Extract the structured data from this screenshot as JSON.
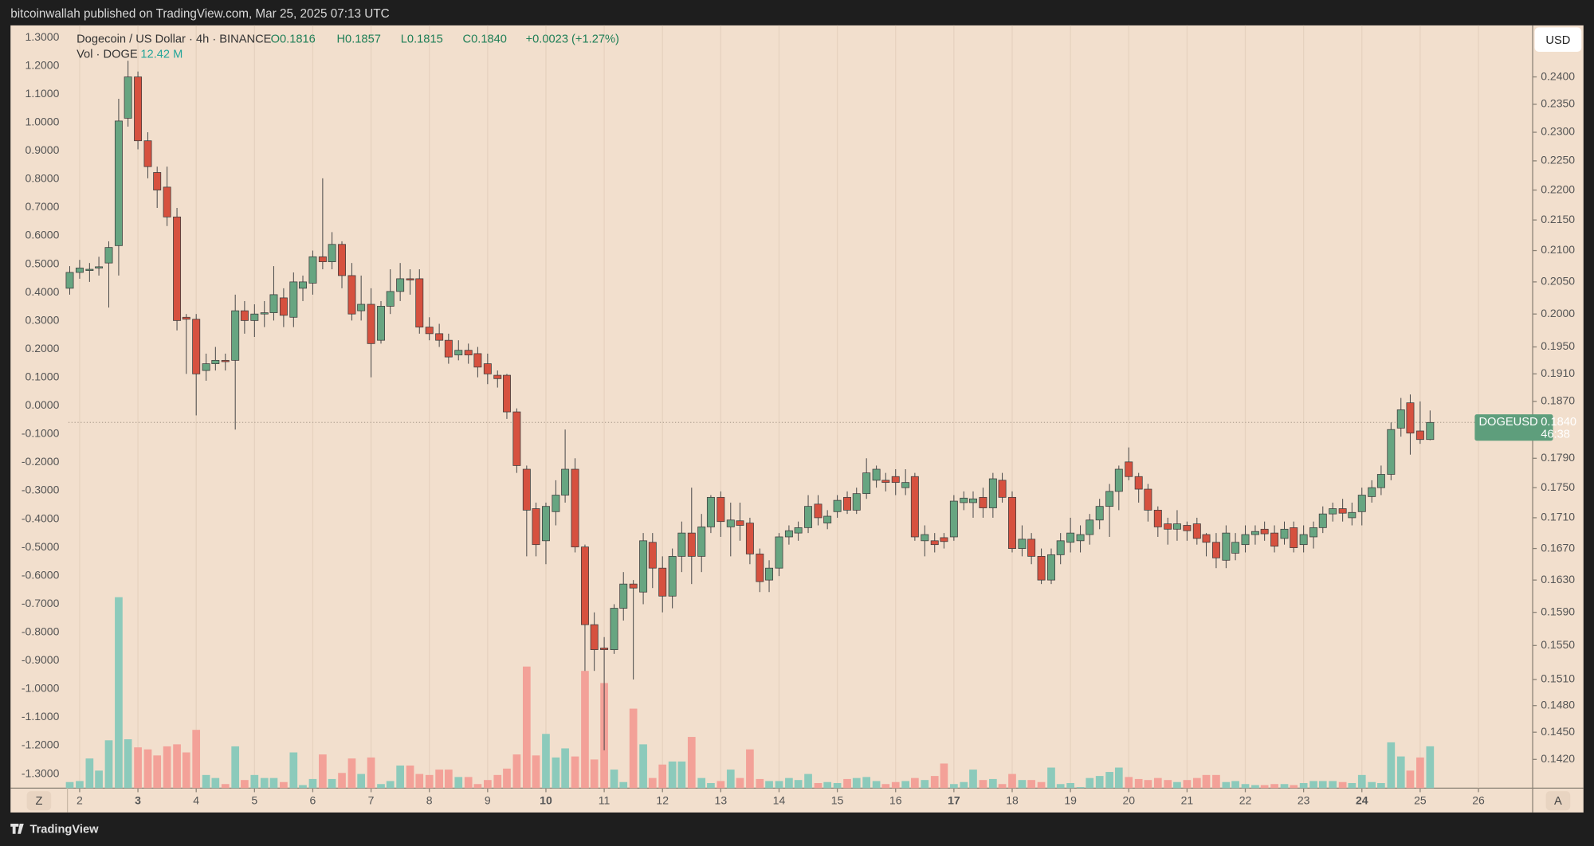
{
  "header": {
    "publish": "bitcoinwallah published on TradingView.com, Mar 25, 2025 07:13 UTC"
  },
  "footer": {
    "brand": "TradingView"
  },
  "buttons": {
    "currency": "USD",
    "zoom": "Z",
    "auto": "A"
  },
  "chart_data": {
    "type": "candlestick",
    "title": "Dogecoin / US Dollar · 4h · BINANCE",
    "ohlc_text": [
      "O0.1816",
      "H0.1857",
      "L0.1815",
      "C0.1840",
      "+0.0023 (+1.27%)"
    ],
    "volume_title": "Vol · DOGE",
    "volume_value": "12.42 M",
    "up_color": "#67a581",
    "down_color": "#d6513f",
    "volume_up_color": "#8ccabb",
    "volume_down_color": "#f3a198",
    "wick_color": "#4a4a4a",
    "grid": true,
    "price_label": {
      "symbol": "DOGEUSD",
      "value": 0.184,
      "label": "0.1840",
      "countdown": "46:38",
      "color": "#5e9e7c"
    },
    "xlim": [
      1.808,
      26.93
    ],
    "xticks": [
      2,
      3,
      4,
      5,
      6,
      7,
      8,
      9,
      10,
      11,
      12,
      13,
      14,
      15,
      16,
      17,
      18,
      19,
      20,
      21,
      22,
      23,
      24,
      25,
      26
    ],
    "major_xticks": [
      3,
      10,
      17,
      24
    ],
    "ylim": [
      -1.35,
      1.343
    ],
    "yticks": [
      {
        "value": 1.3,
        "label": "1.3000"
      },
      {
        "value": 1.2,
        "label": "1.2000"
      },
      {
        "value": 1.1,
        "label": "1.1000"
      },
      {
        "value": 1.0,
        "label": "1.0000"
      },
      {
        "value": 0.9,
        "label": "0.9000"
      },
      {
        "value": 0.8,
        "label": "0.8000"
      },
      {
        "value": 0.7,
        "label": "0.7000"
      },
      {
        "value": 0.6,
        "label": "0.6000"
      },
      {
        "value": 0.5,
        "label": "0.5000"
      },
      {
        "value": 0.4,
        "label": "0.4000"
      },
      {
        "value": 0.3,
        "label": "0.3000"
      },
      {
        "value": 0.2,
        "label": "0.2000"
      },
      {
        "value": 0.1,
        "label": "0.1000"
      },
      {
        "value": 0,
        "label": "0.0000"
      },
      {
        "value": -0.1,
        "label": "-0.1000"
      },
      {
        "value": -0.2,
        "label": "-0.2000"
      },
      {
        "value": -0.3,
        "label": "-0.3000"
      },
      {
        "value": -0.4,
        "label": "-0.4000"
      },
      {
        "value": -0.5,
        "label": "-0.5000"
      },
      {
        "value": -0.6,
        "label": "-0.6000"
      },
      {
        "value": -0.7,
        "label": "-0.7000"
      },
      {
        "value": -0.8,
        "label": "-0.8000"
      },
      {
        "value": -0.9,
        "label": "-0.9000"
      },
      {
        "value": -1.0,
        "label": "-1.0000"
      },
      {
        "value": -1.1,
        "label": "-1.1000"
      },
      {
        "value": -1.2,
        "label": "-1.2000"
      },
      {
        "value": -1.3,
        "label": "-1.3000"
      }
    ],
    "y2lim": [
      0.1389,
      0.2497
    ],
    "y2log": true,
    "y2ticks": [
      {
        "value": 0.24,
        "label": "0.2400"
      },
      {
        "value": 0.235,
        "label": "0.2350"
      },
      {
        "value": 0.23,
        "label": "0.2300"
      },
      {
        "value": 0.225,
        "label": "0.2250"
      },
      {
        "value": 0.22,
        "label": "0.2200"
      },
      {
        "value": 0.215,
        "label": "0.2150"
      },
      {
        "value": 0.21,
        "label": "0.2100"
      },
      {
        "value": 0.205,
        "label": "0.2050"
      },
      {
        "value": 0.2,
        "label": "0.2000"
      },
      {
        "value": 0.195,
        "label": "0.1950"
      },
      {
        "value": 0.191,
        "label": "0.1910"
      },
      {
        "value": 0.187,
        "label": "0.1870"
      },
      {
        "value": 0.179,
        "label": "0.1790"
      },
      {
        "value": 0.175,
        "label": "0.1750"
      },
      {
        "value": 0.171,
        "label": "0.1710"
      },
      {
        "value": 0.167,
        "label": "0.1670"
      },
      {
        "value": 0.163,
        "label": "0.1630"
      },
      {
        "value": 0.159,
        "label": "0.1590"
      },
      {
        "value": 0.155,
        "label": "0.1550"
      },
      {
        "value": 0.151,
        "label": "0.1510"
      },
      {
        "value": 0.148,
        "label": "0.1480"
      },
      {
        "value": 0.145,
        "label": "0.1450"
      },
      {
        "value": 0.142,
        "label": "0.1420"
      }
    ],
    "x": [
      1.83,
      2,
      2.17,
      2.33,
      2.5,
      2.67,
      2.83,
      3,
      3.17,
      3.33,
      3.5,
      3.67,
      3.83,
      4,
      4.17,
      4.33,
      4.5,
      4.67,
      4.83,
      5,
      5.17,
      5.33,
      5.5,
      5.67,
      5.83,
      6,
      6.17,
      6.33,
      6.5,
      6.67,
      6.83,
      7,
      7.17,
      7.33,
      7.5,
      7.67,
      7.83,
      8,
      8.17,
      8.33,
      8.5,
      8.67,
      8.83,
      9,
      9.17,
      9.33,
      9.5,
      9.67,
      9.83,
      10,
      10.17,
      10.33,
      10.5,
      10.67,
      10.83,
      11,
      11.17,
      11.33,
      11.5,
      11.67,
      11.83,
      12,
      12.17,
      12.33,
      12.5,
      12.67,
      12.83,
      13,
      13.17,
      13.33,
      13.5,
      13.67,
      13.83,
      14,
      14.17,
      14.33,
      14.5,
      14.67,
      14.83,
      15,
      15.17,
      15.33,
      15.5,
      15.67,
      15.83,
      16,
      16.17,
      16.33,
      16.5,
      16.67,
      16.83,
      17,
      17.17,
      17.33,
      17.5,
      17.67,
      17.83,
      18,
      18.17,
      18.33,
      18.5,
      18.67,
      18.83,
      19,
      19.17,
      19.33,
      19.5,
      19.67,
      19.83,
      20,
      20.17,
      20.33,
      20.5,
      20.67,
      20.83,
      21,
      21.17,
      21.33,
      21.5,
      21.67,
      21.83,
      22,
      22.17,
      22.33,
      22.5,
      22.67,
      22.83,
      23,
      23.17,
      23.33,
      23.5,
      23.67,
      23.83,
      24,
      24.17,
      24.33,
      24.5,
      24.67,
      24.83,
      25,
      25.17
    ],
    "open": [
      0.204,
      0.2065,
      0.2068,
      0.2072,
      0.208,
      0.2108,
      0.2325,
      0.24,
      0.2285,
      0.223,
      0.2205,
      0.2155,
      0.1995,
      0.1992,
      0.1915,
      0.1925,
      0.193,
      0.193,
      0.2005,
      0.199,
      0.2,
      0.2002,
      0.2025,
      0.1995,
      0.204,
      0.2048,
      0.209,
      0.2082,
      0.211,
      0.206,
      0.2005,
      0.2015,
      0.196,
      0.2012,
      0.2035,
      0.2055,
      0.2055,
      0.198,
      0.197,
      0.196,
      0.1938,
      0.1945,
      0.194,
      0.1925,
      0.1908,
      0.1908,
      0.1855,
      0.1775,
      0.1722,
      0.168,
      0.1718,
      0.174,
      0.1775,
      0.1672,
      0.1575,
      0.1547,
      0.1545,
      0.1595,
      0.1625,
      0.1615,
      0.1678,
      0.1645,
      0.161,
      0.166,
      0.169,
      0.166,
      0.1698,
      0.1737,
      0.1698,
      0.1706,
      0.1703,
      0.1663,
      0.163,
      0.1645,
      0.1685,
      0.169,
      0.1697,
      0.1728,
      0.1703,
      0.1718,
      0.1737,
      0.172,
      0.1742,
      0.176,
      0.176,
      0.1765,
      0.175,
      0.1765,
      0.168,
      0.168,
      0.1684,
      0.1685,
      0.173,
      0.173,
      0.1737,
      0.1723,
      0.176,
      0.1737,
      0.167,
      0.1682,
      0.166,
      0.163,
      0.1662,
      0.1678,
      0.168,
      0.1688,
      0.1707,
      0.1725,
      0.1745,
      0.1785,
      0.1765,
      0.1748,
      0.172,
      0.1702,
      0.1695,
      0.17,
      0.1702,
      0.1688,
      0.1678,
      0.1655,
      0.1664,
      0.1675,
      0.1688,
      0.1695,
      0.169,
      0.1683,
      0.1697,
      0.1675,
      0.1685,
      0.1697,
      0.1715,
      0.1722,
      0.171,
      0.1718,
      0.1738,
      0.175,
      0.1768,
      0.1832,
      0.1868,
      0.1828,
      0.1816
    ],
    "high": [
      0.2075,
      0.2085,
      0.208,
      0.209,
      0.2115,
      0.236,
      0.243,
      0.241,
      0.23,
      0.224,
      0.224,
      0.217,
      0.2,
      0.2,
      0.194,
      0.195,
      0.194,
      0.203,
      0.202,
      0.2015,
      0.202,
      0.2075,
      0.204,
      0.2065,
      0.206,
      0.21,
      0.222,
      0.213,
      0.2115,
      0.208,
      0.206,
      0.204,
      0.202,
      0.207,
      0.208,
      0.207,
      0.207,
      0.1995,
      0.1985,
      0.197,
      0.196,
      0.1955,
      0.195,
      0.194,
      0.1915,
      0.191,
      0.186,
      0.178,
      0.173,
      0.173,
      0.176,
      0.183,
      0.179,
      0.1675,
      0.159,
      0.156,
      0.16,
      0.164,
      0.163,
      0.169,
      0.169,
      0.166,
      0.167,
      0.1705,
      0.175,
      0.1715,
      0.174,
      0.1745,
      0.173,
      0.173,
      0.171,
      0.167,
      0.1655,
      0.169,
      0.17,
      0.1705,
      0.174,
      0.174,
      0.172,
      0.174,
      0.1745,
      0.175,
      0.179,
      0.178,
      0.177,
      0.1775,
      0.1775,
      0.177,
      0.17,
      0.169,
      0.169,
      0.174,
      0.1745,
      0.1745,
      0.175,
      0.177,
      0.177,
      0.1745,
      0.17,
      0.169,
      0.167,
      0.167,
      0.169,
      0.171,
      0.17,
      0.1715,
      0.1735,
      0.1755,
      0.178,
      0.1805,
      0.177,
      0.1755,
      0.1725,
      0.171,
      0.172,
      0.1705,
      0.171,
      0.169,
      0.169,
      0.17,
      0.169,
      0.17,
      0.17,
      0.1705,
      0.17,
      0.1705,
      0.1705,
      0.17,
      0.1705,
      0.1725,
      0.173,
      0.1735,
      0.173,
      0.175,
      0.176,
      0.178,
      0.184,
      0.1875,
      0.188,
      0.187,
      0.1857
    ],
    "low": [
      0.203,
      0.2055,
      0.205,
      0.206,
      0.201,
      0.206,
      0.231,
      0.227,
      0.222,
      0.217,
      0.214,
      0.1975,
      0.191,
      0.185,
      0.19,
      0.1915,
      0.1915,
      0.183,
      0.197,
      0.1965,
      0.198,
      0.199,
      0.198,
      0.198,
      0.202,
      0.203,
      0.207,
      0.207,
      0.204,
      0.199,
      0.199,
      0.1905,
      0.1955,
      0.2,
      0.202,
      0.203,
      0.197,
      0.196,
      0.195,
      0.1925,
      0.193,
      0.1925,
      0.1905,
      0.1895,
      0.189,
      0.1845,
      0.177,
      0.166,
      0.166,
      0.165,
      0.17,
      0.173,
      0.1665,
      0.152,
      0.152,
      0.143,
      0.154,
      0.158,
      0.151,
      0.16,
      0.162,
      0.159,
      0.1595,
      0.164,
      0.1625,
      0.164,
      0.169,
      0.1685,
      0.166,
      0.168,
      0.165,
      0.1615,
      0.1615,
      0.1635,
      0.1675,
      0.168,
      0.169,
      0.17,
      0.1695,
      0.171,
      0.1715,
      0.1715,
      0.1735,
      0.175,
      0.1745,
      0.174,
      0.174,
      0.168,
      0.166,
      0.1665,
      0.167,
      0.168,
      0.172,
      0.171,
      0.171,
      0.171,
      0.173,
      0.1665,
      0.166,
      0.165,
      0.1625,
      0.1625,
      0.165,
      0.1665,
      0.1665,
      0.1675,
      0.1695,
      0.1685,
      0.172,
      0.176,
      0.173,
      0.1705,
      0.1685,
      0.1675,
      0.168,
      0.168,
      0.1675,
      0.166,
      0.1645,
      0.1645,
      0.1655,
      0.1665,
      0.1675,
      0.168,
      0.1665,
      0.1675,
      0.1665,
      0.1665,
      0.167,
      0.169,
      0.1705,
      0.1705,
      0.17,
      0.17,
      0.173,
      0.174,
      0.176,
      0.182,
      0.1795,
      0.181,
      0.1815
    ],
    "close": [
      0.2065,
      0.2072,
      0.207,
      0.2074,
      0.2105,
      0.232,
      0.24,
      0.2285,
      0.224,
      0.22,
      0.2155,
      0.199,
      0.1992,
      0.191,
      0.1925,
      0.193,
      0.1928,
      0.2005,
      0.199,
      0.2,
      0.2002,
      0.203,
      0.1998,
      0.205,
      0.205,
      0.209,
      0.2082,
      0.211,
      0.206,
      0.2,
      0.2015,
      0.1955,
      0.2012,
      0.2035,
      0.2055,
      0.2053,
      0.198,
      0.197,
      0.196,
      0.1935,
      0.1945,
      0.1938,
      0.192,
      0.191,
      0.1903,
      0.1855,
      0.178,
      0.172,
      0.1675,
      0.1725,
      0.174,
      0.1775,
      0.1672,
      0.1575,
      0.1545,
      0.1545,
      0.1595,
      0.1625,
      0.162,
      0.168,
      0.1645,
      0.161,
      0.166,
      0.169,
      0.166,
      0.1698,
      0.1737,
      0.1705,
      0.1707,
      0.17,
      0.1663,
      0.1628,
      0.1645,
      0.1685,
      0.1693,
      0.1697,
      0.1725,
      0.171,
      0.1712,
      0.1733,
      0.172,
      0.1742,
      0.177,
      0.1775,
      0.1757,
      0.1757,
      0.1757,
      0.1685,
      0.1688,
      0.1675,
      0.1679,
      0.1732,
      0.1736,
      0.1735,
      0.1723,
      0.1762,
      0.1737,
      0.167,
      0.1682,
      0.166,
      0.163,
      0.1662,
      0.168,
      0.169,
      0.1688,
      0.1707,
      0.1725,
      0.1745,
      0.1775,
      0.1765,
      0.1748,
      0.172,
      0.1698,
      0.1695,
      0.1702,
      0.1693,
      0.1683,
      0.1678,
      0.1658,
      0.169,
      0.1678,
      0.1688,
      0.1692,
      0.1689,
      0.1673,
      0.1695,
      0.1671,
      0.1688,
      0.1697,
      0.1715,
      0.1722,
      0.1716,
      0.1717,
      0.174,
      0.175,
      0.1768,
      0.183,
      0.1858,
      0.1825,
      0.1816,
      0.184
    ],
    "volume": [
      1.8,
      2.1,
      8.8,
      5.2,
      14.2,
      56.7,
      14.5,
      12.1,
      11.5,
      9.7,
      12.4,
      13.0,
      10.6,
      17.3,
      3.9,
      3.0,
      1.2,
      12.4,
      2.4,
      3.9,
      3.0,
      3.0,
      1.8,
      10.6,
      0.9,
      2.7,
      10.0,
      2.7,
      4.5,
      8.8,
      4.2,
      9.1,
      1.2,
      2.1,
      6.7,
      6.7,
      4.2,
      3.9,
      5.5,
      5.5,
      3.3,
      3.3,
      1.2,
      2.4,
      3.9,
      5.8,
      10.0,
      36.1,
      9.7,
      16.1,
      9.1,
      11.8,
      9.4,
      34.8,
      8.5,
      31.2,
      5.5,
      1.8,
      23.6,
      13.0,
      3.0,
      7.0,
      7.9,
      7.9,
      15.2,
      3.0,
      1.5,
      2.1,
      5.5,
      3.0,
      11.5,
      2.7,
      2.1,
      2.1,
      3.0,
      2.4,
      4.2,
      1.5,
      1.8,
      1.5,
      2.7,
      3.0,
      3.3,
      2.1,
      1.2,
      1.8,
      2.1,
      3.0,
      2.4,
      3.6,
      7.3,
      1.2,
      1.8,
      5.5,
      2.4,
      2.7,
      1.2,
      4.2,
      2.4,
      2.4,
      1.8,
      6.1,
      1.2,
      1.5,
      0.3,
      3.0,
      3.6,
      4.8,
      6.1,
      3.3,
      2.7,
      2.4,
      3.0,
      2.4,
      1.8,
      2.4,
      3.0,
      3.9,
      3.9,
      1.8,
      2.1,
      1.2,
      0.9,
      0.9,
      1.2,
      1.2,
      0.9,
      1.5,
      2.1,
      2.1,
      2.1,
      1.8,
      1.5,
      3.9,
      1.8,
      1.5,
      13.6,
      9.4,
      5.2,
      9.1,
      12.42
    ]
  }
}
